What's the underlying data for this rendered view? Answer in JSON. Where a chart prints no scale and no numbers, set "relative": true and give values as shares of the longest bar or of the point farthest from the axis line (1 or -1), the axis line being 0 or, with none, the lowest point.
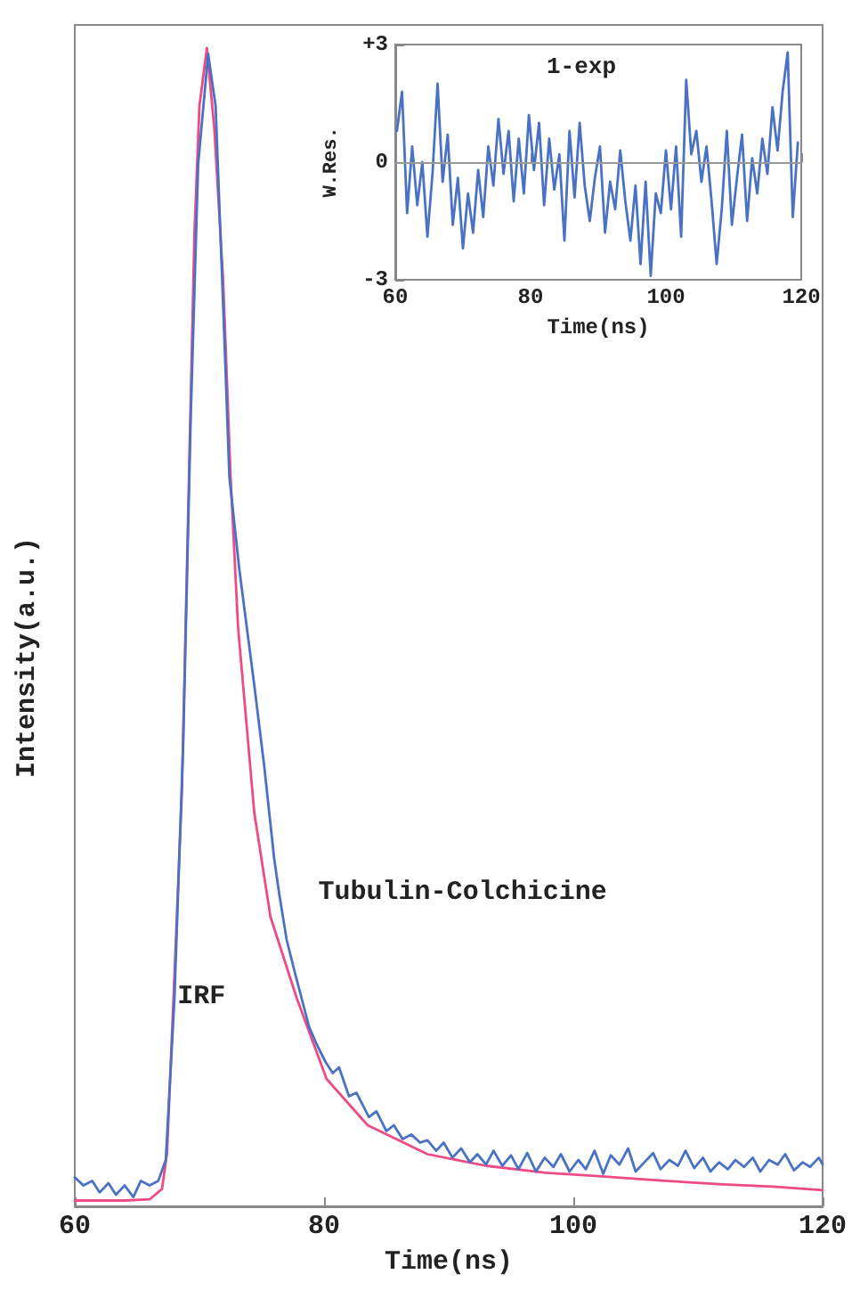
{
  "chart_data": [
    {
      "type": "line",
      "relative": true,
      "xlabel": "Time(ns)",
      "ylabel": "Intensity(a.u.)",
      "xlim": [
        60,
        120
      ],
      "xticks": [
        60,
        80,
        100,
        120
      ],
      "grid": false,
      "legend": false,
      "marker": "none",
      "line_style": "solid",
      "series": [
        {
          "name": "IRF",
          "color": "#ee4a86",
          "x": [
            60,
            62,
            64,
            66,
            67,
            67.4,
            68,
            68.6,
            69.1,
            69.6,
            70,
            70.6,
            71.2,
            71.9,
            72.5,
            73.1,
            74.4,
            75.7,
            77.8,
            80.2,
            83.5,
            88.3,
            93,
            97.8,
            102,
            107.3,
            112,
            116,
            120
          ],
          "values": [
            0.005,
            0.005,
            0.005,
            0.006,
            0.015,
            0.046,
            0.2,
            0.36,
            0.6,
            0.84,
            0.95,
            1,
            0.93,
            0.8,
            0.63,
            0.5,
            0.34,
            0.25,
            0.18,
            0.11,
            0.07,
            0.045,
            0.035,
            0.029,
            0.026,
            0.022,
            0.019,
            0.017,
            0.014
          ]
        },
        {
          "name": "Tubulin-Colchicine",
          "color": "#4a72c4",
          "x": [
            60,
            60.7,
            61.4,
            62,
            62.7,
            63.3,
            64,
            64.7,
            65.3,
            66,
            66.7,
            67.3,
            68,
            68.7,
            69.3,
            69.9,
            70.7,
            71.3,
            72,
            72.4,
            73.2,
            74.4,
            75.2,
            76,
            76.4,
            77,
            77.7,
            78.8,
            79.4,
            80.1,
            80.7,
            81.2,
            82,
            82.6,
            83.6,
            84.2,
            85,
            85.6,
            86.3,
            87,
            87.7,
            88.3,
            89,
            89.6,
            90.3,
            91,
            91.7,
            92.3,
            93,
            93.6,
            94.3,
            95,
            95.6,
            96.3,
            97,
            97.7,
            98.4,
            99,
            99.7,
            100.4,
            101,
            101.7,
            102.4,
            103,
            103.7,
            104.4,
            105,
            105.7,
            106.4,
            107,
            107.7,
            108.4,
            109,
            109.7,
            110.4,
            111,
            111.7,
            112.4,
            113,
            113.7,
            114.4,
            115,
            115.7,
            116.4,
            117,
            117.7,
            118.4,
            119,
            119.7,
            120
          ],
          "values": [
            0.025,
            0.018,
            0.022,
            0.012,
            0.02,
            0.01,
            0.018,
            0.008,
            0.022,
            0.018,
            0.022,
            0.04,
            0.18,
            0.4,
            0.68,
            0.9,
            0.995,
            0.95,
            0.75,
            0.63,
            0.55,
            0.45,
            0.38,
            0.3,
            0.27,
            0.23,
            0.2,
            0.155,
            0.14,
            0.125,
            0.115,
            0.12,
            0.095,
            0.098,
            0.077,
            0.082,
            0.065,
            0.07,
            0.058,
            0.062,
            0.055,
            0.057,
            0.048,
            0.055,
            0.042,
            0.05,
            0.038,
            0.045,
            0.036,
            0.048,
            0.035,
            0.044,
            0.032,
            0.046,
            0.03,
            0.042,
            0.034,
            0.045,
            0.03,
            0.04,
            0.032,
            0.048,
            0.028,
            0.044,
            0.036,
            0.05,
            0.03,
            0.038,
            0.046,
            0.032,
            0.04,
            0.035,
            0.048,
            0.033,
            0.042,
            0.03,
            0.038,
            0.032,
            0.04,
            0.034,
            0.042,
            0.03,
            0.04,
            0.036,
            0.045,
            0.031,
            0.038,
            0.034,
            0.042,
            0.036
          ]
        }
      ]
    },
    {
      "type": "line",
      "title": "1-exp",
      "xlabel": "Time(ns)",
      "ylabel": "W.Res.",
      "xlim": [
        60,
        120
      ],
      "xticks": [
        60,
        80,
        100,
        120
      ],
      "ylim": [
        -3,
        3
      ],
      "yticks": [
        {
          "value": -3,
          "label": "-3"
        },
        0,
        {
          "value": 3,
          "label": "+3"
        }
      ],
      "grid": false,
      "legend": false,
      "marker": "none",
      "line_style": "solid",
      "ref_lines": [
        {
          "axis": "y",
          "value": 0,
          "color": "#999999"
        }
      ],
      "series": [
        {
          "color": "#4a72c4",
          "x": [
            60.25,
            61,
            61.75,
            62.5,
            63.25,
            64,
            64.75,
            65.5,
            66.25,
            67,
            67.75,
            68.5,
            69.25,
            70,
            70.75,
            71.5,
            72.25,
            73,
            73.75,
            74.5,
            75.25,
            76,
            76.75,
            77.5,
            78.25,
            79,
            79.75,
            80.5,
            81.25,
            82,
            82.75,
            83.5,
            84.25,
            85,
            85.75,
            86.5,
            87.25,
            88,
            88.75,
            89.5,
            90.25,
            91,
            91.75,
            92.5,
            93.25,
            94,
            94.75,
            95.5,
            96.25,
            97,
            97.75,
            98.5,
            99.25,
            100,
            100.75,
            101.5,
            102.25,
            103,
            103.75,
            104.5,
            105.25,
            106,
            106.75,
            107.5,
            108.25,
            109,
            109.75,
            110.5,
            111.25,
            112,
            112.75,
            113.5,
            114.25,
            115,
            115.75,
            116.5,
            117.25,
            118,
            118.75,
            119.5
          ],
          "values": [
            0.8,
            1.8,
            -1.3,
            0.4,
            -1.1,
            0.0,
            -1.9,
            -0.3,
            2.0,
            -0.5,
            0.7,
            -1.6,
            -0.4,
            -2.2,
            -0.8,
            -1.8,
            -0.2,
            -1.4,
            0.4,
            -0.6,
            1.1,
            -0.3,
            0.8,
            -1.0,
            0.6,
            -0.8,
            1.2,
            -0.2,
            1.0,
            -1.1,
            0.6,
            -0.7,
            0.2,
            -2.0,
            0.8,
            -0.9,
            1.0,
            -0.6,
            -1.5,
            -0.4,
            0.4,
            -1.8,
            -0.5,
            -1.2,
            0.3,
            -1.0,
            -2.0,
            -0.6,
            -2.6,
            -0.5,
            -2.9,
            -0.8,
            -1.3,
            0.3,
            -1.2,
            0.4,
            -1.9,
            2.1,
            0.2,
            0.8,
            -0.5,
            0.4,
            -1.0,
            -2.6,
            -1.2,
            0.8,
            -1.6,
            -0.4,
            0.7,
            -1.5,
            0.1,
            -0.8,
            0.6,
            -0.3,
            1.4,
            0.3,
            1.8,
            2.8,
            -1.4,
            0.5
          ]
        }
      ]
    }
  ]
}
